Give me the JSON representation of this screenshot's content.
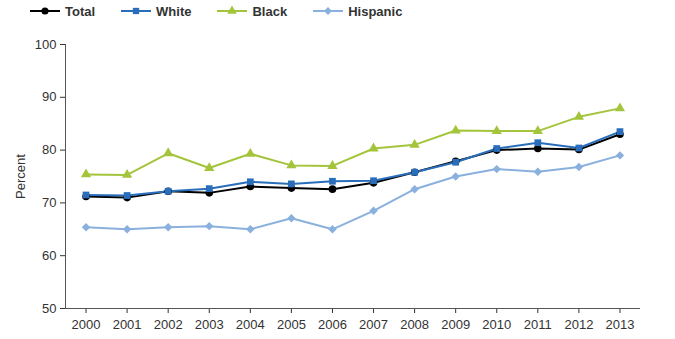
{
  "chart_data": {
    "type": "line",
    "y_label": "Percent",
    "x": [
      2000,
      2001,
      2002,
      2003,
      2004,
      2005,
      2006,
      2007,
      2008,
      2009,
      2010,
      2011,
      2012,
      2013
    ],
    "xlim": [
      1999.5,
      2013.5
    ],
    "xticks": [
      2000,
      2001,
      2002,
      2003,
      2004,
      2005,
      2006,
      2007,
      2008,
      2009,
      2010,
      2011,
      2012,
      2013
    ],
    "ylim": [
      50,
      100
    ],
    "yticks": [
      50,
      60,
      70,
      80,
      90,
      100
    ],
    "grid": false,
    "legend": "top-left",
    "series": [
      {
        "name": "Total",
        "color": "#000000",
        "marker": "circle",
        "values": [
          71.2,
          71.0,
          72.2,
          71.9,
          73.1,
          72.8,
          72.6,
          73.8,
          75.8,
          77.9,
          80.0,
          80.3,
          80.1,
          83.0
        ]
      },
      {
        "name": "White",
        "color": "#2a6ebb",
        "marker": "square",
        "values": [
          71.5,
          71.4,
          72.2,
          72.7,
          74.0,
          73.6,
          74.1,
          74.2,
          75.8,
          77.7,
          80.3,
          81.4,
          80.4,
          83.5
        ]
      },
      {
        "name": "Black",
        "color": "#a4c43c",
        "marker": "triangle",
        "values": [
          75.4,
          75.3,
          79.4,
          76.6,
          79.3,
          77.1,
          77.0,
          80.3,
          81.0,
          83.7,
          83.6,
          83.6,
          86.3,
          87.9
        ]
      },
      {
        "name": "Hispanic",
        "color": "#8ab0de",
        "marker": "diamond",
        "values": [
          65.4,
          65.0,
          65.4,
          65.6,
          65.0,
          67.1,
          65.0,
          68.5,
          72.6,
          75.0,
          76.4,
          75.9,
          76.8,
          79.0
        ]
      }
    ]
  }
}
